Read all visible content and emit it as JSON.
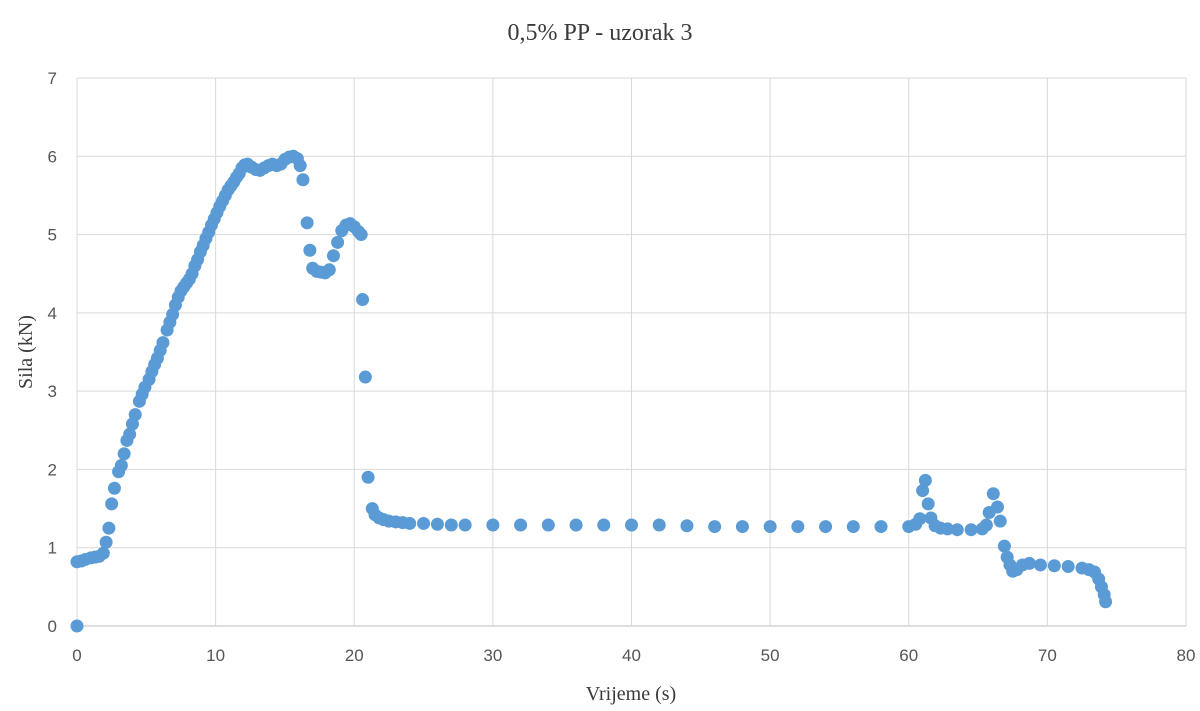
{
  "chart_data": {
    "type": "scatter",
    "title": "0,5% PP - uzorak 3",
    "xlabel": "Vrijeme (s)",
    "ylabel": "Sila (kN)",
    "xlim": [
      0,
      80
    ],
    "ylim": [
      0,
      7
    ],
    "x_ticks": [
      0,
      10,
      20,
      30,
      40,
      50,
      60,
      70,
      80
    ],
    "y_ticks": [
      0,
      1,
      2,
      3,
      4,
      5,
      6,
      7
    ],
    "grid": true,
    "legend": "none",
    "series": [
      {
        "color": "#5b9bd5",
        "points": [
          [
            0,
            0
          ],
          [
            0,
            0.82
          ],
          [
            0.3,
            0.83
          ],
          [
            0.6,
            0.85
          ],
          [
            1.0,
            0.87
          ],
          [
            1.3,
            0.88
          ],
          [
            1.6,
            0.89
          ],
          [
            1.9,
            0.93
          ],
          [
            2.1,
            1.07
          ],
          [
            2.3,
            1.25
          ],
          [
            2.5,
            1.56
          ],
          [
            2.7,
            1.76
          ],
          [
            3.0,
            1.97
          ],
          [
            3.2,
            2.05
          ],
          [
            3.4,
            2.2
          ],
          [
            3.6,
            2.37
          ],
          [
            3.8,
            2.45
          ],
          [
            4.0,
            2.58
          ],
          [
            4.2,
            2.7
          ],
          [
            4.5,
            2.87
          ],
          [
            4.7,
            2.96
          ],
          [
            4.9,
            3.05
          ],
          [
            5.2,
            3.15
          ],
          [
            5.4,
            3.25
          ],
          [
            5.6,
            3.34
          ],
          [
            5.8,
            3.42
          ],
          [
            6.0,
            3.52
          ],
          [
            6.2,
            3.62
          ],
          [
            6.5,
            3.78
          ],
          [
            6.7,
            3.88
          ],
          [
            6.9,
            3.98
          ],
          [
            7.1,
            4.1
          ],
          [
            7.3,
            4.2
          ],
          [
            7.5,
            4.28
          ],
          [
            7.7,
            4.33
          ],
          [
            7.9,
            4.38
          ],
          [
            8.1,
            4.43
          ],
          [
            8.3,
            4.5
          ],
          [
            8.5,
            4.6
          ],
          [
            8.7,
            4.68
          ],
          [
            8.9,
            4.78
          ],
          [
            9.1,
            4.86
          ],
          [
            9.3,
            4.95
          ],
          [
            9.5,
            5.03
          ],
          [
            9.7,
            5.12
          ],
          [
            9.9,
            5.2
          ],
          [
            10.1,
            5.28
          ],
          [
            10.3,
            5.36
          ],
          [
            10.5,
            5.43
          ],
          [
            10.7,
            5.5
          ],
          [
            10.9,
            5.57
          ],
          [
            11.1,
            5.62
          ],
          [
            11.3,
            5.67
          ],
          [
            11.5,
            5.73
          ],
          [
            11.7,
            5.78
          ],
          [
            11.9,
            5.85
          ],
          [
            12.1,
            5.89
          ],
          [
            12.3,
            5.9
          ],
          [
            12.6,
            5.86
          ],
          [
            12.9,
            5.83
          ],
          [
            13.2,
            5.82
          ],
          [
            13.5,
            5.85
          ],
          [
            13.8,
            5.88
          ],
          [
            14.1,
            5.9
          ],
          [
            14.4,
            5.88
          ],
          [
            14.7,
            5.9
          ],
          [
            15.0,
            5.96
          ],
          [
            15.3,
            5.99
          ],
          [
            15.6,
            6.0
          ],
          [
            15.9,
            5.97
          ],
          [
            16.1,
            5.88
          ],
          [
            16.3,
            5.7
          ],
          [
            16.6,
            5.15
          ],
          [
            16.8,
            4.8
          ],
          [
            17.0,
            4.57
          ],
          [
            17.3,
            4.53
          ],
          [
            17.6,
            4.52
          ],
          [
            17.9,
            4.51
          ],
          [
            18.2,
            4.55
          ],
          [
            18.5,
            4.73
          ],
          [
            18.8,
            4.9
          ],
          [
            19.1,
            5.05
          ],
          [
            19.4,
            5.12
          ],
          [
            19.7,
            5.14
          ],
          [
            20.0,
            5.1
          ],
          [
            20.3,
            5.04
          ],
          [
            20.5,
            5.0
          ],
          [
            20.6,
            4.17
          ],
          [
            20.8,
            3.18
          ],
          [
            21.0,
            1.9
          ],
          [
            21.3,
            1.5
          ],
          [
            21.5,
            1.42
          ],
          [
            21.8,
            1.38
          ],
          [
            22.1,
            1.36
          ],
          [
            22.5,
            1.34
          ],
          [
            23.0,
            1.33
          ],
          [
            23.5,
            1.32
          ],
          [
            24.0,
            1.31
          ],
          [
            25.0,
            1.31
          ],
          [
            26.0,
            1.3
          ],
          [
            27.0,
            1.29
          ],
          [
            28.0,
            1.29
          ],
          [
            30.0,
            1.29
          ],
          [
            32.0,
            1.29
          ],
          [
            34.0,
            1.29
          ],
          [
            36.0,
            1.29
          ],
          [
            38.0,
            1.29
          ],
          [
            40.0,
            1.29
          ],
          [
            42.0,
            1.29
          ],
          [
            44.0,
            1.28
          ],
          [
            46.0,
            1.27
          ],
          [
            48.0,
            1.27
          ],
          [
            50.0,
            1.27
          ],
          [
            52.0,
            1.27
          ],
          [
            54.0,
            1.27
          ],
          [
            56.0,
            1.27
          ],
          [
            58.0,
            1.27
          ],
          [
            60.0,
            1.27
          ],
          [
            60.5,
            1.3
          ],
          [
            60.8,
            1.37
          ],
          [
            61.0,
            1.73
          ],
          [
            61.2,
            1.86
          ],
          [
            61.4,
            1.56
          ],
          [
            61.6,
            1.38
          ],
          [
            61.9,
            1.28
          ],
          [
            62.3,
            1.25
          ],
          [
            62.8,
            1.24
          ],
          [
            63.5,
            1.23
          ],
          [
            64.5,
            1.23
          ],
          [
            65.3,
            1.24
          ],
          [
            65.6,
            1.29
          ],
          [
            65.8,
            1.45
          ],
          [
            66.1,
            1.69
          ],
          [
            66.4,
            1.52
          ],
          [
            66.6,
            1.34
          ],
          [
            66.9,
            1.02
          ],
          [
            67.1,
            0.88
          ],
          [
            67.3,
            0.78
          ],
          [
            67.5,
            0.7
          ],
          [
            67.8,
            0.72
          ],
          [
            68.2,
            0.78
          ],
          [
            68.7,
            0.8
          ],
          [
            69.5,
            0.78
          ],
          [
            70.5,
            0.77
          ],
          [
            71.5,
            0.76
          ],
          [
            72.5,
            0.74
          ],
          [
            73.0,
            0.72
          ],
          [
            73.4,
            0.69
          ],
          [
            73.7,
            0.6
          ],
          [
            73.9,
            0.5
          ],
          [
            74.1,
            0.4
          ],
          [
            74.2,
            0.31
          ]
        ]
      }
    ]
  }
}
